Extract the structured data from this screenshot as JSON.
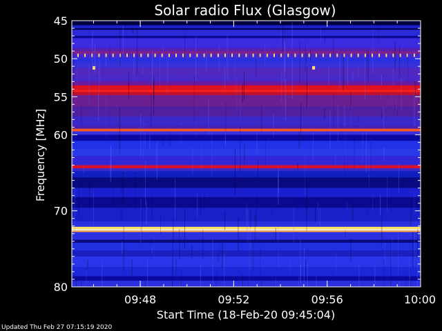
{
  "chart_data": {
    "type": "heatmap",
    "title": "Solar radio Flux (Glasgow)",
    "xlabel": "Start Time (18-Feb-20 09:45:04)",
    "ylabel": "Frequency [MHz]",
    "x_ticks": [
      "09:48",
      "09:52",
      "09:56",
      "10:00"
    ],
    "x_tick_minutes": [
      2.93,
      6.93,
      10.93,
      14.93
    ],
    "xlim_minutes": [
      0,
      14.93
    ],
    "y_ticks": [
      45,
      50,
      55,
      60,
      70,
      80
    ],
    "ylim": [
      45,
      80
    ],
    "colors": {
      "background_band": "#1a22d8",
      "dark_band": "#000050",
      "mid_band": "#2030e8",
      "purple_band": "#5a2aa8",
      "red_band": "#d8102a",
      "bright_band": "#ff5020",
      "hot_band": "#fff8c0"
    },
    "bands": [
      {
        "f0": 45.0,
        "f1": 45.6,
        "color": "#000040"
      },
      {
        "f0": 45.6,
        "f1": 46.0,
        "color": "#1a20c8"
      },
      {
        "f0": 46.0,
        "f1": 46.2,
        "color": "#000050"
      },
      {
        "f0": 46.2,
        "f1": 47.0,
        "color": "#2a2ad8"
      },
      {
        "f0": 47.0,
        "f1": 47.3,
        "color": "#0a0a90"
      },
      {
        "f0": 47.3,
        "f1": 48.6,
        "color": "#3a2ae0"
      },
      {
        "f0": 48.6,
        "f1": 49.0,
        "color": "#5a20b0"
      },
      {
        "f0": 49.0,
        "f1": 49.4,
        "color": "#7a2090"
      },
      {
        "f0": 49.4,
        "f1": 49.9,
        "color": "#402ad0"
      },
      {
        "f0": 49.9,
        "f1": 50.5,
        "color": "#2a30e0"
      },
      {
        "f0": 50.5,
        "f1": 51.2,
        "color": "#3a30d8"
      },
      {
        "f0": 51.2,
        "f1": 52.2,
        "color": "#5028c0"
      },
      {
        "f0": 52.2,
        "f1": 53.0,
        "color": "#4a28c8"
      },
      {
        "f0": 53.0,
        "f1": 53.5,
        "color": "#6a1a9a"
      },
      {
        "f0": 53.5,
        "f1": 54.1,
        "color": "#e01020"
      },
      {
        "f0": 54.1,
        "f1": 54.4,
        "color": "#ff2010"
      },
      {
        "f0": 54.4,
        "f1": 54.8,
        "color": "#c01030"
      },
      {
        "f0": 54.8,
        "f1": 56.3,
        "color": "#6a2090"
      },
      {
        "f0": 56.3,
        "f1": 57.6,
        "color": "#5020a0"
      },
      {
        "f0": 57.6,
        "f1": 58.8,
        "color": "#3a28c8"
      },
      {
        "f0": 58.8,
        "f1": 59.2,
        "color": "#4a20b0"
      },
      {
        "f0": 59.2,
        "f1": 59.55,
        "color": "#ff5a20"
      },
      {
        "f0": 59.55,
        "f1": 60.0,
        "color": "#3a30e0"
      },
      {
        "f0": 60.0,
        "f1": 60.8,
        "color": "#0a0aa0"
      },
      {
        "f0": 60.8,
        "f1": 61.8,
        "color": "#2230e8"
      },
      {
        "f0": 61.8,
        "f1": 62.8,
        "color": "#2a3ae8"
      },
      {
        "f0": 62.8,
        "f1": 64.0,
        "color": "#3028d8"
      },
      {
        "f0": 64.0,
        "f1": 64.4,
        "color": "#e01028"
      },
      {
        "f0": 64.4,
        "f1": 64.8,
        "color": "#3a28c8"
      },
      {
        "f0": 64.8,
        "f1": 65.6,
        "color": "#1020c0"
      },
      {
        "f0": 65.6,
        "f1": 67.0,
        "color": "#0a0a80"
      },
      {
        "f0": 67.0,
        "f1": 68.2,
        "color": "#1a20d0"
      },
      {
        "f0": 68.2,
        "f1": 69.6,
        "color": "#0a0a90"
      },
      {
        "f0": 69.6,
        "f1": 71.4,
        "color": "#1820c8"
      },
      {
        "f0": 71.4,
        "f1": 72.1,
        "color": "#2a30e0"
      },
      {
        "f0": 72.1,
        "f1": 72.4,
        "color": "#ffe060"
      },
      {
        "f0": 72.4,
        "f1": 72.6,
        "color": "#fff8d0"
      },
      {
        "f0": 72.6,
        "f1": 72.8,
        "color": "#ffa040"
      },
      {
        "f0": 72.8,
        "f1": 73.8,
        "color": "#2a30e0"
      },
      {
        "f0": 73.8,
        "f1": 74.2,
        "color": "#0a0a80"
      },
      {
        "f0": 74.2,
        "f1": 75.2,
        "color": "#2030e0"
      },
      {
        "f0": 75.2,
        "f1": 76.0,
        "color": "#1a20c0"
      },
      {
        "f0": 76.0,
        "f1": 77.4,
        "color": "#2a34e8"
      },
      {
        "f0": 77.4,
        "f1": 78.6,
        "color": "#1a28d8"
      },
      {
        "f0": 78.6,
        "f1": 79.2,
        "color": "#0a0aa0"
      },
      {
        "f0": 79.2,
        "f1": 80.0,
        "color": "#2a30e0"
      }
    ],
    "dotted_line": {
      "freq": 49.55,
      "count": 49,
      "color": "#ffd080"
    },
    "spots": [
      {
        "minute": 0.95,
        "freq": 51.2,
        "color": "#ffe080"
      },
      {
        "minute": 10.35,
        "freq": 51.2,
        "color": "#ffe080"
      }
    ]
  },
  "footer": {
    "updated": "Updated Thu Feb 27 07:15:19 2020"
  }
}
